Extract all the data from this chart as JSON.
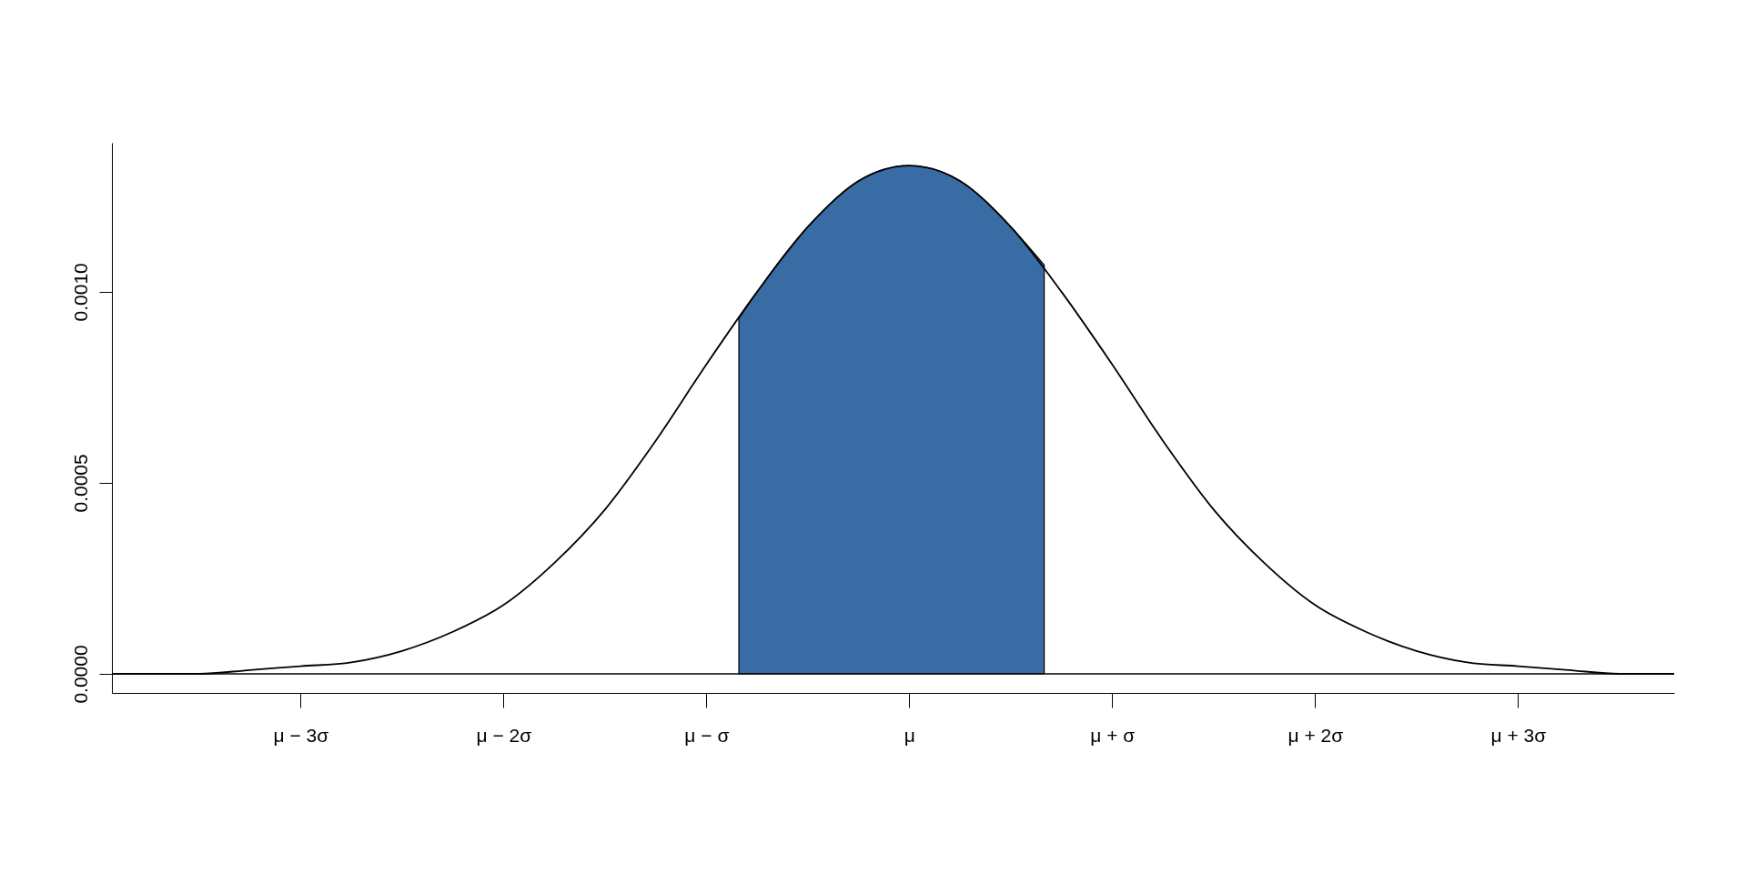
{
  "chart_data": {
    "type": "line",
    "xlim": [
      -3.93,
      3.77
    ],
    "ylim": [
      -5e-05,
      0.00139
    ],
    "xticks": [
      {
        "value": -3,
        "label": "μ − 3σ"
      },
      {
        "value": -2,
        "label": "μ − 2σ"
      },
      {
        "value": -1,
        "label": "μ − σ"
      },
      {
        "value": 0,
        "label": "μ"
      },
      {
        "value": 1,
        "label": "μ + σ"
      },
      {
        "value": 2,
        "label": "μ + 2σ"
      },
      {
        "value": 3,
        "label": "μ + 3σ"
      }
    ],
    "yticks": [
      {
        "value": 0,
        "label": "0.0000"
      },
      {
        "value": 0.0005,
        "label": "0.0005"
      },
      {
        "value": 0.001,
        "label": "0.0010"
      }
    ],
    "grid": false,
    "ref_lines": [
      {
        "axis": "y",
        "value": 0,
        "color": "#000000"
      }
    ],
    "series": [
      {
        "type": "area",
        "color": "#396ba4",
        "x": [
          -0.84,
          -0.75,
          -0.5,
          -0.25,
          0,
          0.25,
          0.5,
          0.665
        ],
        "values": [
          0.00093,
          0.001,
          0.00117,
          0.00129,
          0.00133,
          0.00129,
          0.00117,
          0.00107
        ]
      },
      {
        "color": "#000000",
        "x": [
          -3.93,
          -3.5,
          -3.25,
          -3,
          -2.75,
          -2.5,
          -2.25,
          -2,
          -1.75,
          -1.5,
          -1.25,
          -1,
          -0.75,
          -0.5,
          -0.25,
          0,
          0.25,
          0.5,
          0.75,
          1,
          1.25,
          1.5,
          1.75,
          2,
          2.25,
          2.5,
          2.75,
          3,
          3.25,
          3.5,
          3.77
        ],
        "values": [
          0,
          0,
          1e-05,
          2e-05,
          3e-05,
          6e-05,
          0.00011,
          0.00018,
          0.00029,
          0.00043,
          0.00061,
          0.00081,
          0.001,
          0.00117,
          0.00129,
          0.00133,
          0.00129,
          0.00117,
          0.001,
          0.00081,
          0.00061,
          0.00043,
          0.00029,
          0.00018,
          0.00011,
          6e-05,
          3e-05,
          2e-05,
          1e-05,
          0,
          0
        ]
      }
    ]
  }
}
